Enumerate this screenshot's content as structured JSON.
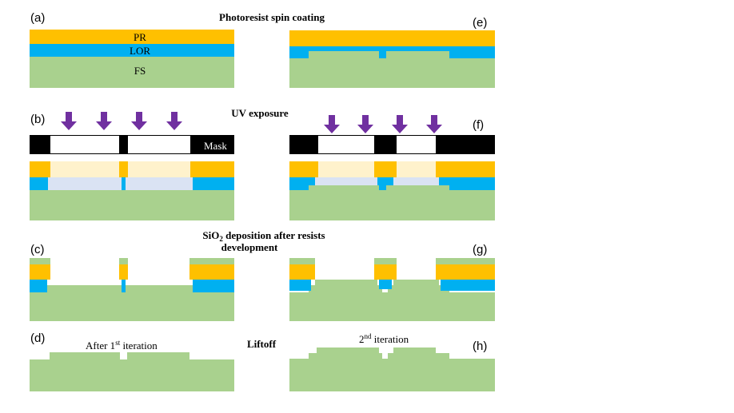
{
  "steps": {
    "spin": "Photoresist spin coating",
    "uv": "UV exposure",
    "sio2_main": "SiO",
    "sio2_sub": "2",
    "sio2_rest": " deposition after resists",
    "sio2_line2": "development",
    "liftoff": "Liftoff"
  },
  "panels": {
    "a": "(a)",
    "b": "(b)",
    "c": "(c)",
    "d": "(d)",
    "e": "(e)",
    "f": "(f)",
    "g": "(g)",
    "h": "(h)"
  },
  "layers": {
    "pr": "PR",
    "lor": "LOR",
    "fs": "FS"
  },
  "mask_label": "Mask",
  "iter1": {
    "pre": "After 1",
    "sup": "st",
    "post": " iteration"
  },
  "iter2": {
    "pre": "2",
    "sup": "nd",
    "post": " iteration"
  },
  "colors": {
    "pr": "#FFC000",
    "lor": "#00B0F0",
    "fs": "#A9D18E",
    "pr_exposed": "#FFF2CC",
    "lor_exposed": "#DAE3F3",
    "arrow": "#7030A0",
    "mask": "#000000"
  }
}
